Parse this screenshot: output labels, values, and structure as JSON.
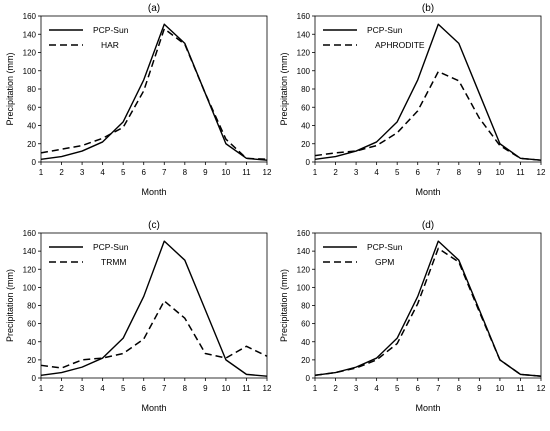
{
  "chart_data": [
    {
      "type": "line",
      "title": "(a)",
      "xlabel": "Month",
      "ylabel": "Precipitation (mm)",
      "x": [
        1,
        2,
        3,
        4,
        5,
        6,
        7,
        8,
        9,
        10,
        11,
        12
      ],
      "xlim": [
        1,
        12
      ],
      "ylim": [
        0,
        160
      ],
      "yticks": [
        0,
        20,
        40,
        60,
        80,
        100,
        120,
        140,
        160
      ],
      "legend_position": "top-left",
      "series": [
        {
          "name": "PCP-Sun",
          "style": "solid",
          "values": [
            3,
            6,
            12,
            22,
            44,
            90,
            151,
            130,
            75,
            20,
            4,
            2
          ]
        },
        {
          "name": "HAR",
          "style": "dashed",
          "values": [
            10,
            14,
            18,
            26,
            38,
            78,
            146,
            129,
            75,
            25,
            4,
            3
          ]
        }
      ]
    },
    {
      "type": "line",
      "title": "(b)",
      "xlabel": "Month",
      "ylabel": "Precipitation (mm)",
      "x": [
        1,
        2,
        3,
        4,
        5,
        6,
        7,
        8,
        9,
        10,
        11,
        12
      ],
      "xlim": [
        1,
        12
      ],
      "ylim": [
        0,
        160
      ],
      "yticks": [
        0,
        20,
        40,
        60,
        80,
        100,
        120,
        140,
        160
      ],
      "legend_position": "top-left",
      "series": [
        {
          "name": "PCP-Sun",
          "style": "solid",
          "values": [
            3,
            6,
            12,
            22,
            44,
            90,
            151,
            130,
            75,
            20,
            4,
            2
          ]
        },
        {
          "name": "APHRODITE",
          "style": "dashed",
          "values": [
            7,
            10,
            12,
            18,
            32,
            56,
            99,
            89,
            48,
            18,
            4,
            2
          ]
        }
      ]
    },
    {
      "type": "line",
      "title": "(c)",
      "xlabel": "Month",
      "ylabel": "Precipitation (mm)",
      "x": [
        1,
        2,
        3,
        4,
        5,
        6,
        7,
        8,
        9,
        10,
        11,
        12
      ],
      "xlim": [
        1,
        12
      ],
      "ylim": [
        0,
        160
      ],
      "yticks": [
        0,
        20,
        40,
        60,
        80,
        100,
        120,
        140,
        160
      ],
      "legend_position": "top-left",
      "series": [
        {
          "name": "PCP-Sun",
          "style": "solid",
          "values": [
            3,
            6,
            12,
            22,
            44,
            90,
            151,
            130,
            75,
            20,
            4,
            2
          ]
        },
        {
          "name": "TRMM",
          "style": "dashed",
          "values": [
            14,
            11,
            20,
            22,
            27,
            43,
            85,
            66,
            27,
            22,
            35,
            24
          ]
        }
      ]
    },
    {
      "type": "line",
      "title": "(d)",
      "xlabel": "Month",
      "ylabel": "Precipitation (mm)",
      "x": [
        1,
        2,
        3,
        4,
        5,
        6,
        7,
        8,
        9,
        10,
        11,
        12
      ],
      "xlim": [
        1,
        12
      ],
      "ylim": [
        0,
        160
      ],
      "yticks": [
        0,
        20,
        40,
        60,
        80,
        100,
        120,
        140,
        160
      ],
      "legend_position": "top-left",
      "series": [
        {
          "name": "PCP-Sun",
          "style": "solid",
          "values": [
            3,
            6,
            12,
            22,
            44,
            90,
            151,
            130,
            75,
            20,
            4,
            2
          ]
        },
        {
          "name": "GPM",
          "style": "dashed",
          "values": [
            3,
            6,
            11,
            20,
            38,
            82,
            143,
            128,
            73,
            20,
            4,
            2
          ]
        }
      ]
    }
  ]
}
